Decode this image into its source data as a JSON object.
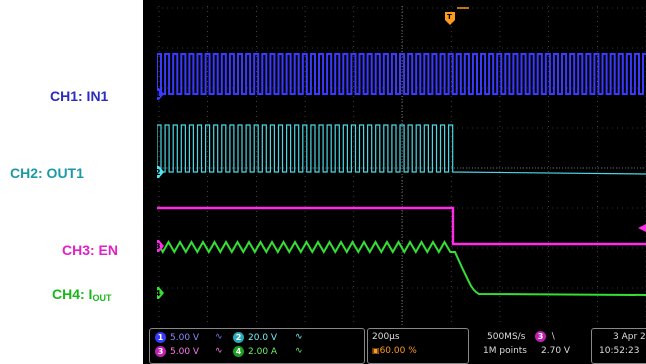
{
  "channel_labels": [
    {
      "id": "ch1",
      "text": "CH1: IN1",
      "color": "#2b2bbf"
    },
    {
      "id": "ch2",
      "text": "CH2: OUT1",
      "color": "#1b9aa6"
    },
    {
      "id": "ch3",
      "text": "CH3: EN",
      "color": "#e020c8"
    },
    {
      "id": "ch4_main",
      "text": "CH4: I",
      "sub": "OUT",
      "color": "#18b818"
    }
  ],
  "colors": {
    "ch1": "#3a3aff",
    "ch2": "#4fe4f0",
    "ch3": "#ff2be8",
    "ch4": "#34e034",
    "grid": "#6a6a6a",
    "trigger": "#ff9a1a"
  },
  "status": {
    "ch1": {
      "num": "1",
      "scale": "5.00 V"
    },
    "ch2": {
      "num": "2",
      "scale": "20.0 V"
    },
    "ch3": {
      "num": "3",
      "scale": "5.00 V"
    },
    "ch4": {
      "num": "4",
      "scale": "2.00 A"
    },
    "timebase": "200µs",
    "trigger_pos": "60.00 %",
    "sample_rate": "500MS/s",
    "record_length": "1M points",
    "trigger_source": "3",
    "trigger_level": "2.70 V",
    "date": "3 Apr 2",
    "time": "10:52:23"
  },
  "markers": {
    "ch1": "1",
    "ch2": "2",
    "ch3": "3",
    "ch4": "4",
    "trigger": "T"
  }
}
